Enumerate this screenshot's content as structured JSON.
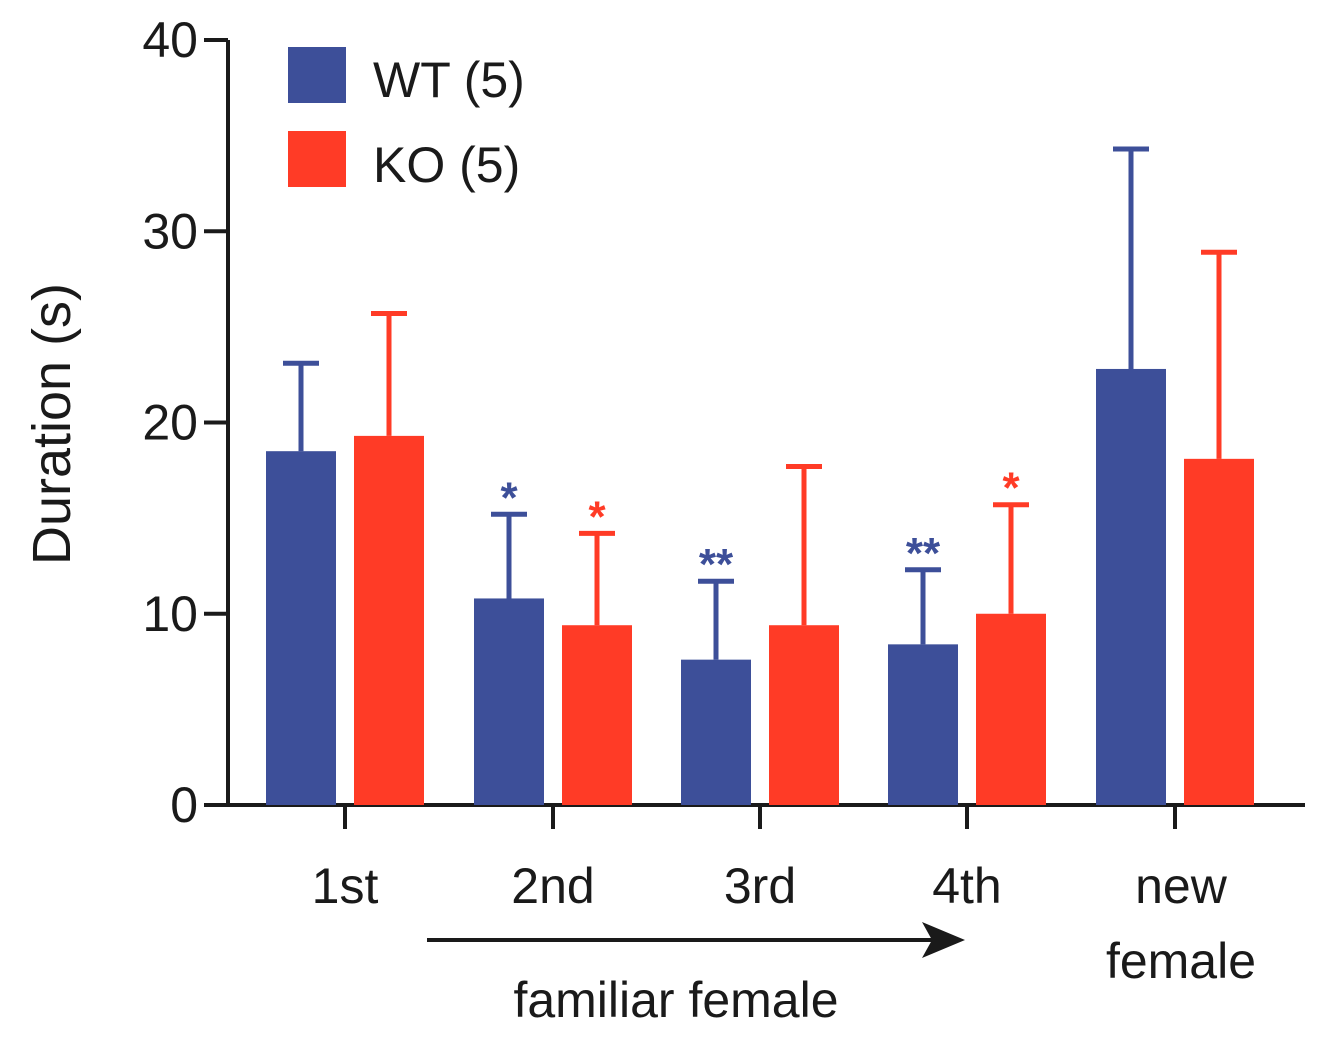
{
  "chart_data": {
    "type": "bar",
    "title": "",
    "ylabel": "Duration (s)",
    "xlabel": "familiar female",
    "ylim": [
      0,
      40
    ],
    "yticks": [
      0,
      10,
      20,
      30,
      40
    ],
    "categories": [
      "1st",
      "2nd",
      "3rd",
      "4th",
      "new female"
    ],
    "category_lines": [
      [
        "1st"
      ],
      [
        "2nd"
      ],
      [
        "3rd"
      ],
      [
        "4th"
      ],
      [
        "new",
        "female"
      ]
    ],
    "series": [
      {
        "name": "WT (5)",
        "color": "#3d4f99",
        "values": [
          18.5,
          10.8,
          7.6,
          8.4,
          22.8
        ],
        "errors": [
          4.6,
          4.4,
          4.1,
          3.9,
          11.5
        ],
        "significance": [
          "",
          "*",
          "**",
          "**",
          ""
        ]
      },
      {
        "name": "KO (5)",
        "color": "#ff3b26",
        "values": [
          19.3,
          9.4,
          9.4,
          10.0,
          18.1
        ],
        "errors": [
          6.4,
          4.8,
          8.3,
          5.7,
          10.8
        ],
        "significance": [
          "",
          "*",
          "",
          "*",
          ""
        ]
      }
    ],
    "annotation": "familiar female",
    "legend_position": "top-left"
  }
}
